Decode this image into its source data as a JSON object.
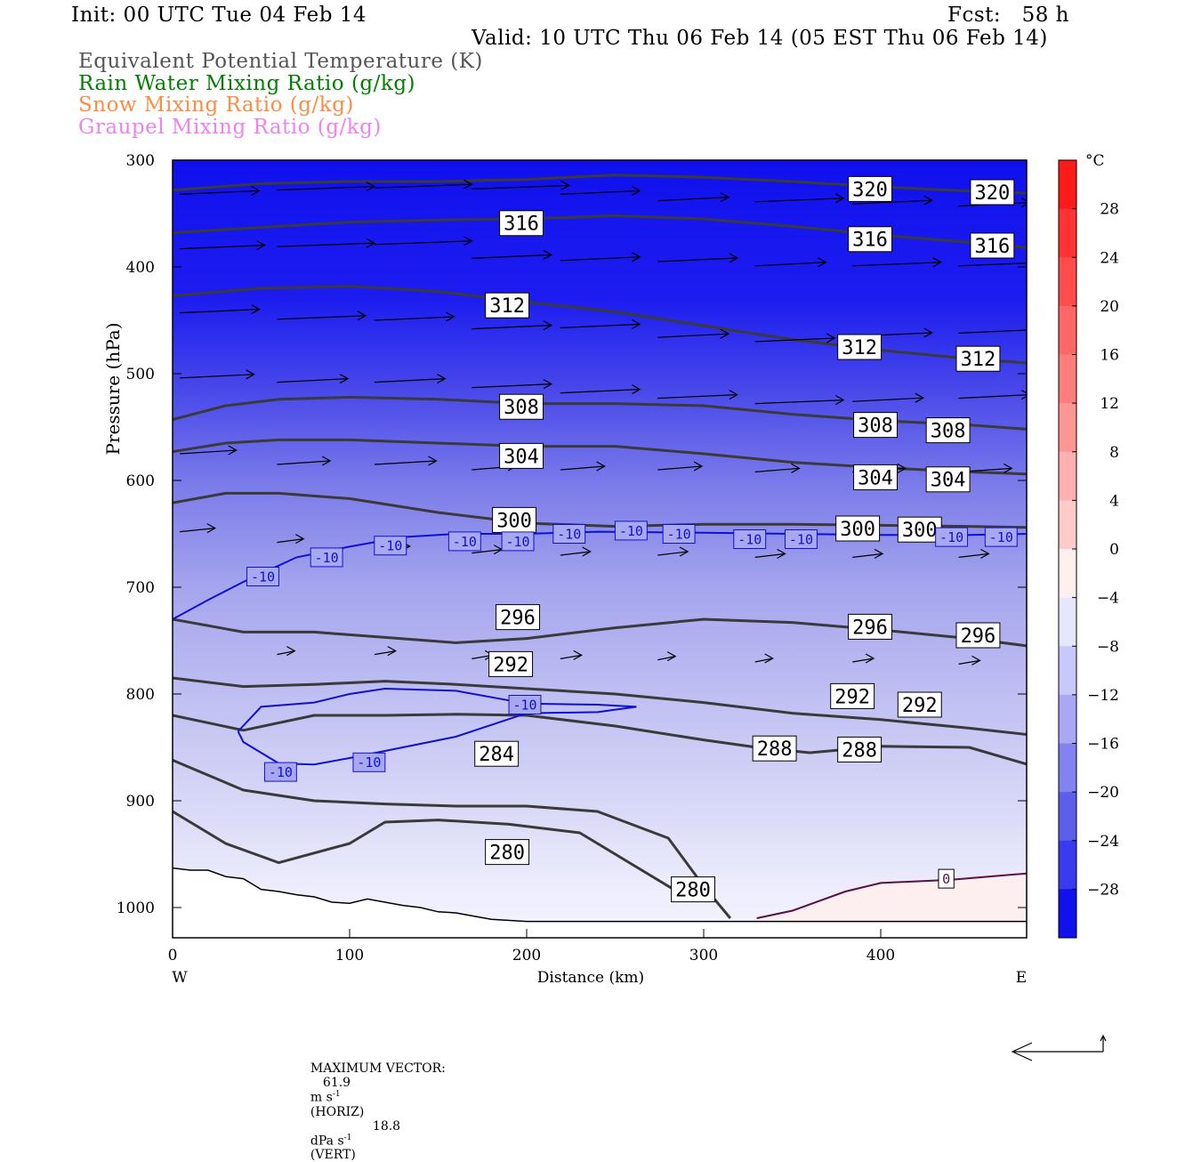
{
  "header": {
    "init": "Init: 00 UTC Tue 04 Feb 14",
    "fcst": "Fcst:   58 h",
    "valid": "Valid: 10 UTC Thu 06 Feb 14 (05 EST Thu 06 Feb 14)"
  },
  "legend": [
    {
      "label": "Equivalent Potential Temperature (K)",
      "color": "#555555"
    },
    {
      "label": "Rain Water Mixing Ratio (g/kg)",
      "color": "#007f00"
    },
    {
      "label": "Snow Mixing Ratio (g/kg)",
      "color": "#ff8c42"
    },
    {
      "label": "Graupel Mixing Ratio (g/kg)",
      "color": "#ee82ee"
    }
  ],
  "chart_data": {
    "type": "cross-section",
    "xlabel": "Distance (km)",
    "ylabel": "Pressure (hPa)",
    "xlim": [
      0,
      483
    ],
    "ylim": [
      1030,
      300
    ],
    "x_ticks": [
      0,
      100,
      200,
      300,
      400
    ],
    "y_ticks": [
      300,
      400,
      500,
      600,
      700,
      800,
      900,
      1000
    ],
    "x_end_labels": {
      "left": "W",
      "right": "E"
    },
    "colorbar": {
      "unit": "°C",
      "range": [
        -32,
        32
      ],
      "tick_labels": [
        28,
        24,
        20,
        16,
        12,
        8,
        4,
        0,
        -4,
        -8,
        -12,
        -16,
        -20,
        -24,
        -28
      ]
    },
    "theta_e_contours": [
      {
        "value": 320,
        "x": [
          0,
          50,
          100,
          150,
          200,
          250,
          300,
          350,
          400,
          450,
          483
        ],
        "p": [
          328,
          322,
          320,
          320,
          318,
          314,
          316,
          320,
          325,
          329,
          331
        ]
      },
      {
        "value": 316,
        "x": [
          0,
          50,
          100,
          150,
          200,
          250,
          300,
          350,
          400,
          450,
          483
        ],
        "p": [
          368,
          363,
          358,
          356,
          355,
          352,
          355,
          362,
          370,
          377,
          382
        ]
      },
      {
        "value": 312,
        "x": [
          0,
          50,
          100,
          150,
          200,
          250,
          300,
          350,
          400,
          450,
          483
        ],
        "p": [
          427,
          420,
          418,
          423,
          433,
          442,
          455,
          468,
          478,
          486,
          490
        ]
      },
      {
        "value": 308,
        "x": [
          0,
          30,
          60,
          100,
          150,
          200,
          250,
          300,
          350,
          400,
          450,
          483
        ],
        "p": [
          543,
          530,
          524,
          522,
          524,
          528,
          528,
          530,
          538,
          544,
          548,
          552
        ]
      },
      {
        "value": 304,
        "x": [
          0,
          30,
          60,
          100,
          150,
          200,
          250,
          300,
          350,
          400,
          450,
          483
        ],
        "p": [
          573,
          565,
          562,
          562,
          565,
          568,
          568,
          575,
          583,
          588,
          592,
          594
        ]
      },
      {
        "value": 300,
        "x": [
          0,
          30,
          60,
          100,
          150,
          200,
          250,
          300,
          350,
          400,
          450,
          483
        ],
        "p": [
          621,
          612,
          612,
          617,
          630,
          640,
          643,
          641,
          641,
          642,
          643,
          644
        ]
      },
      {
        "value": 296,
        "x": [
          0,
          40,
          80,
          120,
          160,
          200,
          250,
          300,
          350,
          400,
          450,
          483
        ],
        "p": [
          730,
          742,
          742,
          747,
          752,
          748,
          738,
          730,
          733,
          740,
          748,
          755
        ]
      },
      {
        "value": 292,
        "x": [
          0,
          40,
          80,
          120,
          160,
          200,
          250,
          300,
          350,
          400,
          450,
          483
        ],
        "p": [
          785,
          793,
          791,
          788,
          791,
          795,
          800,
          808,
          818,
          824,
          832,
          838
        ]
      },
      {
        "value": 288,
        "x": [
          0,
          40,
          80,
          120,
          160,
          200,
          250,
          300,
          330,
          360,
          400,
          450,
          483
        ],
        "p": [
          820,
          834,
          820,
          820,
          819,
          820,
          830,
          843,
          850,
          855,
          849,
          850,
          866
        ]
      },
      {
        "value": 284,
        "x": [
          0,
          40,
          80,
          120,
          160,
          200,
          240,
          280,
          300,
          315
        ],
        "p": [
          862,
          890,
          900,
          903,
          905,
          905,
          910,
          935,
          980,
          1010
        ]
      },
      {
        "value": 280,
        "x": [
          0,
          30,
          60,
          100,
          120,
          150,
          190,
          230,
          260,
          290
        ],
        "p": [
          910,
          940,
          958,
          940,
          920,
          918,
          922,
          930,
          960,
          990
        ]
      }
    ],
    "theta_e_labels": [
      {
        "text": "320",
        "x": 394,
        "p": 327
      },
      {
        "text": "320",
        "x": 463,
        "p": 330
      },
      {
        "text": "316",
        "x": 197,
        "p": 359
      },
      {
        "text": "316",
        "x": 394,
        "p": 374
      },
      {
        "text": "316",
        "x": 463,
        "p": 380
      },
      {
        "text": "312",
        "x": 189,
        "p": 436
      },
      {
        "text": "312",
        "x": 388,
        "p": 475
      },
      {
        "text": "312",
        "x": 455,
        "p": 486
      },
      {
        "text": "308",
        "x": 197,
        "p": 531
      },
      {
        "text": "308",
        "x": 397,
        "p": 548
      },
      {
        "text": "308",
        "x": 438,
        "p": 553
      },
      {
        "text": "304",
        "x": 197,
        "p": 577
      },
      {
        "text": "304",
        "x": 397,
        "p": 597
      },
      {
        "text": "304",
        "x": 438,
        "p": 599
      },
      {
        "text": "300",
        "x": 193,
        "p": 637
      },
      {
        "text": "300",
        "x": 387,
        "p": 645
      },
      {
        "text": "300",
        "x": 422,
        "p": 646
      },
      {
        "text": "296",
        "x": 195,
        "p": 728
      },
      {
        "text": "296",
        "x": 394,
        "p": 737
      },
      {
        "text": "296",
        "x": 455,
        "p": 745
      },
      {
        "text": "292",
        "x": 191,
        "p": 772
      },
      {
        "text": "292",
        "x": 384,
        "p": 802
      },
      {
        "text": "292",
        "x": 422,
        "p": 810
      },
      {
        "text": "288",
        "x": 340,
        "p": 851
      },
      {
        "text": "288",
        "x": 388,
        "p": 852
      },
      {
        "text": "284",
        "x": 183,
        "p": 856
      },
      {
        "text": "280",
        "x": 189,
        "p": 948
      },
      {
        "text": "280",
        "x": 294,
        "p": 983
      }
    ],
    "temperature_contours": [
      {
        "value": -10,
        "x": [
          0,
          20,
          40,
          70,
          100,
          130,
          160,
          200,
          240,
          300,
          350,
          400,
          450,
          483
        ],
        "p": [
          730,
          712,
          695,
          672,
          662,
          653,
          650,
          650,
          648,
          649,
          650,
          651,
          651,
          650
        ]
      },
      {
        "value": -10,
        "x": [
          37,
          50,
          80,
          100,
          120,
          160,
          200,
          240,
          262,
          240,
          200,
          160,
          100,
          80,
          60,
          40,
          37
        ],
        "p": [
          835,
          812,
          808,
          800,
          795,
          797,
          809,
          810,
          812,
          817,
          818,
          840,
          860,
          866,
          865,
          845,
          835
        ]
      },
      {
        "value": 0,
        "x": [
          330,
          350,
          380,
          400,
          440,
          483
        ],
        "p": [
          1010,
          1003,
          985,
          977,
          974,
          968
        ]
      }
    ],
    "temperature_labels": [
      {
        "text": "-10",
        "x": 51,
        "p": 690
      },
      {
        "text": "-10",
        "x": 87,
        "p": 672
      },
      {
        "text": "-10",
        "x": 123,
        "p": 661
      },
      {
        "text": "-10",
        "x": 165,
        "p": 657
      },
      {
        "text": "-10",
        "x": 195,
        "p": 657
      },
      {
        "text": "-10",
        "x": 224,
        "p": 650
      },
      {
        "text": "-10",
        "x": 259,
        "p": 647
      },
      {
        "text": "-10",
        "x": 286,
        "p": 650
      },
      {
        "text": "-10",
        "x": 326,
        "p": 655
      },
      {
        "text": "-10",
        "x": 355,
        "p": 655
      },
      {
        "text": "-10",
        "x": 440,
        "p": 653
      },
      {
        "text": "-10",
        "x": 468,
        "p": 653
      },
      {
        "text": "-10",
        "x": 199,
        "p": 810
      },
      {
        "text": "-10",
        "x": 61,
        "p": 873
      },
      {
        "text": "-10",
        "x": 111,
        "p": 864
      },
      {
        "text": "0",
        "x": 437,
        "p": 973
      }
    ],
    "ground_pressure": {
      "x": [
        0,
        10,
        20,
        30,
        40,
        50,
        60,
        70,
        80,
        90,
        100,
        110,
        120,
        130,
        140,
        150,
        160,
        170,
        180,
        200,
        250,
        300,
        350,
        400,
        483
      ],
      "p": [
        963,
        965,
        965,
        971,
        973,
        983,
        985,
        988,
        990,
        995,
        996,
        992,
        995,
        998,
        1000,
        1004,
        1005,
        1008,
        1011,
        1013,
        1013,
        1013,
        1013,
        1013,
        1013
      ]
    },
    "annotation": {
      "max_vector_label": "MAXIMUM VECTOR:",
      "horiz_value": "61.9",
      "horiz_unit": "m s",
      "horiz_note": "(HORIZ)",
      "vert_value": "18.8",
      "vert_unit": "dPa s",
      "vert_note": "(VERT)",
      "exponent": "-1"
    }
  }
}
